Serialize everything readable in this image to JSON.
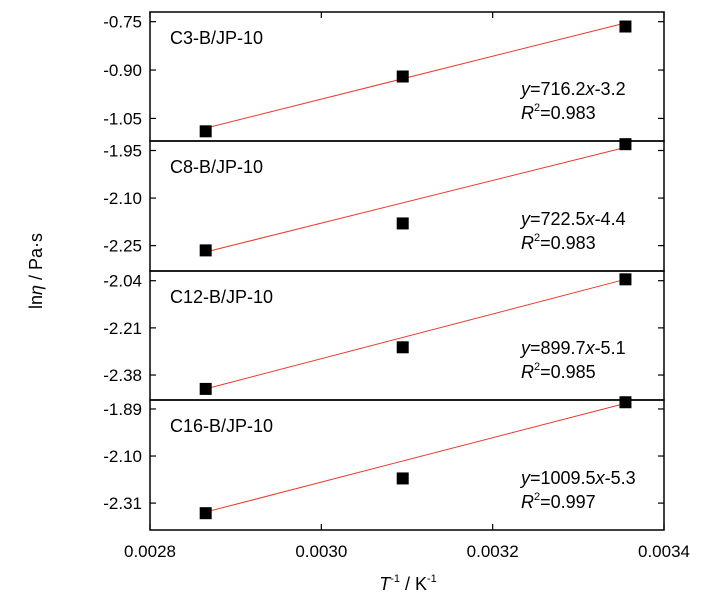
{
  "chart_data": {
    "type": "scatter",
    "xlabel": "T⁻¹ / K⁻¹",
    "ylabel": "lnη / Pa·s",
    "xlim": [
      0.0028,
      0.0034
    ],
    "x_ticks": [
      "0.0028",
      "0.0030",
      "0.0032",
      "0.0034"
    ],
    "grid": false,
    "marker": "filled-square",
    "fit_line_color": "#e8392c",
    "marker_color": "#000000",
    "panels": [
      {
        "name": "C3-B/JP-10",
        "x": [
          0.002865,
          0.003095,
          0.003355
        ],
        "y": [
          -1.09,
          -0.92,
          -0.765
        ],
        "fit_line_y": [
          -1.08,
          -0.754
        ],
        "equation": {
          "slope": "716.2",
          "intercept": "-3.2",
          "r2": "0.983"
        },
        "y_ticks": [
          "-0.75",
          "-0.90",
          "-1.05"
        ],
        "ylim": [
          -1.12,
          -0.72
        ]
      },
      {
        "name": "C8-B/JP-10",
        "x": [
          0.002865,
          0.003095,
          0.003355
        ],
        "y": [
          -2.265,
          -2.18,
          -1.93
        ],
        "fit_line_y": [
          -2.27,
          -1.94
        ],
        "equation": {
          "slope": "722.5",
          "intercept": "-4.4",
          "r2": "0.983"
        },
        "y_ticks": [
          "-1.95",
          "-2.10",
          "-2.25"
        ],
        "ylim": [
          -2.33,
          -1.92
        ]
      },
      {
        "name": "C12-B/JP-10",
        "x": [
          0.002865,
          0.003095,
          0.003355
        ],
        "y": [
          -2.43,
          -2.28,
          -2.035
        ],
        "fit_line_y": [
          -2.43,
          -2.035
        ],
        "equation": {
          "slope": "899.7",
          "intercept": "-5.1",
          "r2": "0.985"
        },
        "y_ticks": [
          "-2.04",
          "-2.21",
          "-2.38"
        ],
        "ylim": [
          -2.47,
          -2.005
        ]
      },
      {
        "name": "C16-B/JP-10",
        "x": [
          0.002865,
          0.003095,
          0.003355
        ],
        "y": [
          -2.355,
          -2.2,
          -1.86
        ],
        "fit_line_y": [
          -2.35,
          -1.865
        ],
        "equation": {
          "slope": "1009.5",
          "intercept": "-5.3",
          "r2": "0.997"
        },
        "y_ticks": [
          "-1.89",
          "-2.10",
          "-2.31"
        ],
        "ylim": [
          -2.43,
          -1.85
        ]
      }
    ]
  }
}
